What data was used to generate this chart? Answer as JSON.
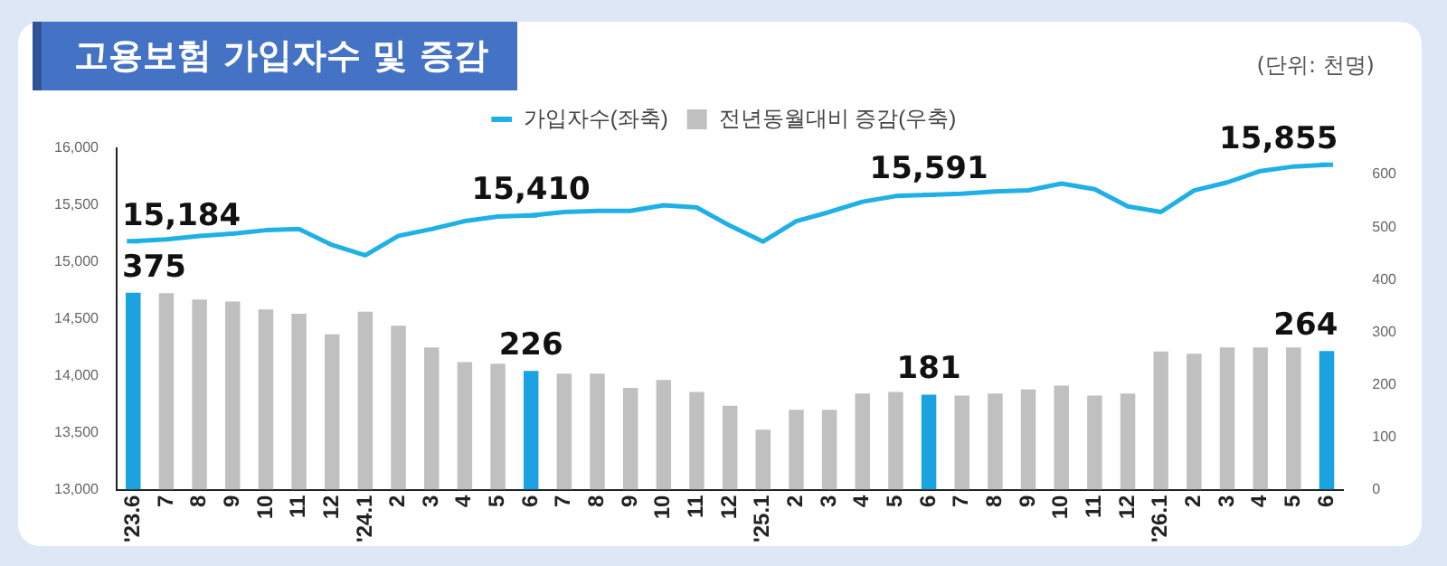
{
  "chart_data": {
    "type": "bar",
    "title": "고용보험 가입자수 및 증감",
    "annotations": [
      "(단위: 천명)"
    ],
    "categories": [
      "'23.6",
      "7",
      "8",
      "9",
      "10",
      "11",
      "12",
      "'24.1",
      "2",
      "3",
      "4",
      "5",
      "6",
      "7",
      "8",
      "9",
      "10",
      "11",
      "12",
      "'25.1",
      "2",
      "3",
      "4",
      "5",
      "6",
      "7",
      "8",
      "9",
      "10",
      "11",
      "12",
      "'26.1",
      "2",
      "3",
      "4",
      "5",
      "6"
    ],
    "series": [
      {
        "type": "line",
        "name": "가입자수(좌축)",
        "color": "#1fb0e6",
        "values": [
          15184,
          15200,
          15230,
          15250,
          15280,
          15290,
          15150,
          15060,
          15230,
          15290,
          15360,
          15400,
          15410,
          15440,
          15450,
          15450,
          15500,
          15480,
          15320,
          15180,
          15360,
          15440,
          15530,
          15580,
          15591,
          15600,
          15620,
          15630,
          15690,
          15640,
          15490,
          15440,
          15630,
          15700,
          15800,
          15840,
          15855
        ],
        "value_labels": [
          "15,184",
          null,
          null,
          null,
          null,
          null,
          null,
          null,
          null,
          null,
          null,
          null,
          "15,410",
          null,
          null,
          null,
          null,
          null,
          null,
          null,
          null,
          null,
          null,
          null,
          "15,591",
          null,
          null,
          null,
          null,
          null,
          null,
          null,
          null,
          null,
          null,
          null,
          "15,855"
        ]
      },
      {
        "axis": "y2",
        "name": "전년동월대비 증감(우축)",
        "color": "#c0c0c0",
        "colors": [
          "#1aa3e0",
          "#c0c0c0",
          "#c0c0c0",
          "#c0c0c0",
          "#c0c0c0",
          "#c0c0c0",
          "#c0c0c0",
          "#c0c0c0",
          "#c0c0c0",
          "#c0c0c0",
          "#c0c0c0",
          "#c0c0c0",
          "#1aa3e0",
          "#c0c0c0",
          "#c0c0c0",
          "#c0c0c0",
          "#c0c0c0",
          "#c0c0c0",
          "#c0c0c0",
          "#c0c0c0",
          "#c0c0c0",
          "#c0c0c0",
          "#c0c0c0",
          "#c0c0c0",
          "#1aa3e0",
          "#c0c0c0",
          "#c0c0c0",
          "#c0c0c0",
          "#c0c0c0",
          "#c0c0c0",
          "#c0c0c0",
          "#c0c0c0",
          "#c0c0c0",
          "#c0c0c0",
          "#c0c0c0",
          "#c0c0c0",
          "#1aa3e0"
        ],
        "values": [
          375,
          374,
          362,
          358,
          343,
          335,
          296,
          339,
          312,
          271,
          243,
          240,
          226,
          221,
          221,
          194,
          209,
          186,
          160,
          114,
          152,
          152,
          183,
          186,
          181,
          179,
          183,
          191,
          198,
          179,
          183,
          263,
          259,
          271,
          271,
          271,
          264
        ],
        "value_labels": [
          "375",
          null,
          null,
          null,
          null,
          null,
          null,
          null,
          null,
          null,
          null,
          null,
          "226",
          null,
          null,
          null,
          null,
          null,
          null,
          null,
          null,
          null,
          null,
          null,
          "181",
          null,
          null,
          null,
          null,
          null,
          null,
          null,
          null,
          null,
          null,
          null,
          "264"
        ]
      }
    ],
    "ylim": [
      13000,
      16000
    ],
    "yticks": [
      {
        "value": 13000,
        "label": "13,000"
      },
      {
        "value": 13500,
        "label": "13,500"
      },
      {
        "value": 14000,
        "label": "14,000"
      },
      {
        "value": 14500,
        "label": "14,500"
      },
      {
        "value": 15000,
        "label": "15,000"
      },
      {
        "value": 15500,
        "label": "15,500"
      },
      {
        "value": 16000,
        "label": "16,000"
      }
    ],
    "y2lim": [
      0,
      650
    ],
    "y2ticks": [
      0,
      100,
      200,
      300,
      400,
      500,
      600
    ],
    "legend": "top",
    "grid": false
  }
}
